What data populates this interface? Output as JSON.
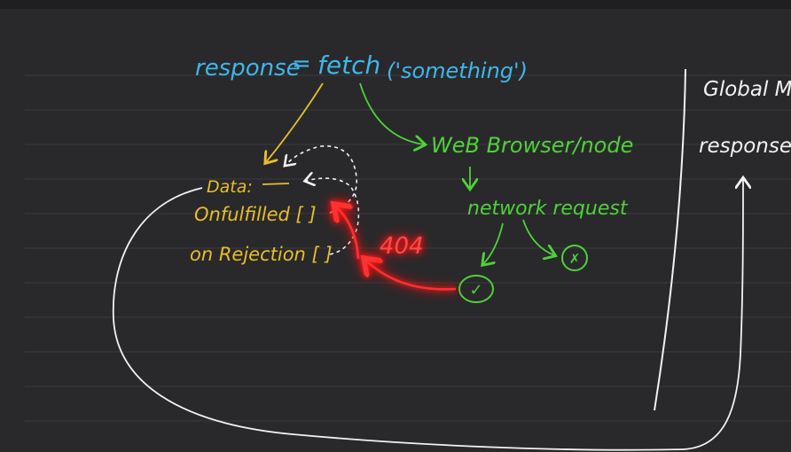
{
  "board": {
    "top_line": {
      "response_word": "response",
      "equals": "=",
      "fetch_word": "fetch",
      "argument": "('something')"
    },
    "promise_object": {
      "data_label": "Data:",
      "onfulfilled_label": "Onfulfilled [ ]",
      "onrejection_label": "on Rejection [ ]"
    },
    "environment": {
      "browser_label": "WeB Browser/node",
      "network_label": "network request",
      "success_symbol": "✓",
      "failure_symbol": "✗"
    },
    "error_label": "404",
    "global_memory": {
      "title": "Global M",
      "response_entry": "response:"
    },
    "colors": {
      "background": "#29292b",
      "blue": "#3fb6ea",
      "yellow": "#e8be2a",
      "green": "#4fd13a",
      "red": "#ff2a2a",
      "white": "#f2f2f2"
    }
  }
}
